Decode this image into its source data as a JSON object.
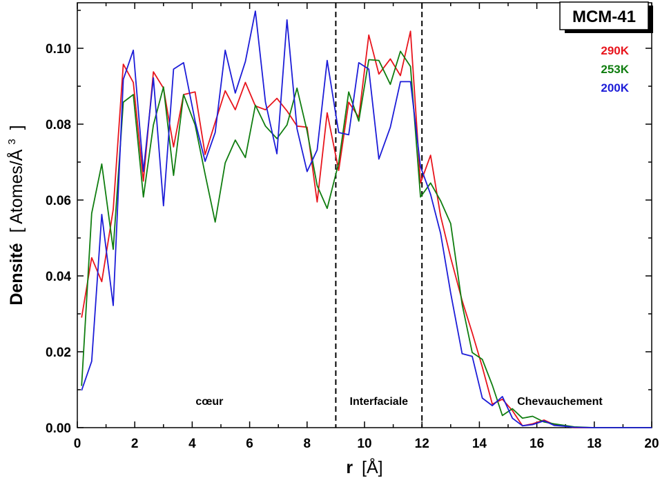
{
  "chart_data": {
    "type": "line",
    "title": "MCM-41",
    "xlabel": {
      "main": "r",
      "unit": "[Å]"
    },
    "ylabel": {
      "main": "Densité",
      "unit": "[ Atomes/Å",
      "sup": "3",
      "close": "]"
    },
    "xlim": [
      0,
      20
    ],
    "ylim": [
      0,
      0.112
    ],
    "xticks": [
      0,
      2,
      4,
      6,
      8,
      10,
      12,
      14,
      16,
      18,
      20
    ],
    "xtick_labels": [
      "0",
      "2",
      "4",
      "6",
      "8",
      "10",
      "12",
      "14",
      "16",
      "18",
      "20"
    ],
    "yticks": [
      0,
      0.02,
      0.04,
      0.06,
      0.08,
      0.1
    ],
    "ytick_labels": [
      "0.00",
      "0.02",
      "0.04",
      "0.06",
      "0.08",
      "0.10"
    ],
    "grid": false,
    "legend_position": "top-right",
    "vlines": [
      9,
      12
    ],
    "regions": [
      {
        "label": "cœur",
        "x": 4.6
      },
      {
        "label": "Interfaciale",
        "x": 10.5
      },
      {
        "label": "Chevauchement",
        "x": 16.8
      }
    ],
    "series": [
      {
        "name": "290K",
        "color": "#e8141c",
        "x": [
          0.15,
          0.5,
          0.85,
          1.25,
          1.6,
          1.95,
          2.3,
          2.65,
          3.0,
          3.35,
          3.7,
          4.1,
          4.45,
          4.8,
          5.15,
          5.5,
          5.85,
          6.2,
          6.55,
          6.95,
          7.3,
          7.65,
          8.0,
          8.35,
          8.7,
          9.1,
          9.45,
          9.8,
          10.15,
          10.5,
          10.9,
          11.25,
          11.6,
          11.95,
          12.3,
          12.65,
          13.0,
          13.4,
          13.75,
          14.1,
          14.45,
          14.8,
          15.15,
          15.5,
          15.85,
          16.25,
          16.6,
          16.95,
          17.3,
          18.0,
          19.0,
          20.0
        ],
        "y": [
          0.029,
          0.0448,
          0.0385,
          0.0575,
          0.0958,
          0.091,
          0.065,
          0.0938,
          0.0895,
          0.074,
          0.0878,
          0.0885,
          0.072,
          0.0805,
          0.0888,
          0.0838,
          0.091,
          0.0848,
          0.0838,
          0.0868,
          0.0835,
          0.0795,
          0.0792,
          0.0595,
          0.083,
          0.0678,
          0.0858,
          0.0818,
          0.1035,
          0.0932,
          0.0972,
          0.0928,
          0.1045,
          0.0645,
          0.0718,
          0.0558,
          0.0448,
          0.0335,
          0.025,
          0.016,
          0.0062,
          0.0075,
          0.0045,
          0.0005,
          0.001,
          0.002,
          0.0008,
          0.0005,
          0.0,
          0.0,
          0.0,
          0.0
        ]
      },
      {
        "name": "253K",
        "color": "#0f7d0f",
        "x": [
          0.15,
          0.5,
          0.85,
          1.25,
          1.6,
          1.95,
          2.3,
          2.65,
          3.0,
          3.35,
          3.7,
          4.1,
          4.45,
          4.8,
          5.15,
          5.5,
          5.85,
          6.2,
          6.55,
          6.95,
          7.3,
          7.65,
          8.0,
          8.35,
          8.7,
          9.1,
          9.45,
          9.8,
          10.15,
          10.5,
          10.9,
          11.25,
          11.6,
          11.95,
          12.3,
          12.65,
          13.0,
          13.4,
          13.75,
          14.1,
          14.45,
          14.8,
          15.15,
          15.5,
          15.85,
          16.25,
          16.6,
          16.95,
          17.3,
          18.0,
          19.0,
          20.0
        ],
        "y": [
          0.011,
          0.0565,
          0.0695,
          0.047,
          0.0858,
          0.0878,
          0.0608,
          0.0798,
          0.0898,
          0.0665,
          0.0878,
          0.0798,
          0.0668,
          0.0542,
          0.0698,
          0.0758,
          0.0712,
          0.085,
          0.0795,
          0.0762,
          0.0798,
          0.0895,
          0.0782,
          0.0638,
          0.0578,
          0.0698,
          0.0885,
          0.0808,
          0.097,
          0.0968,
          0.0905,
          0.0992,
          0.0952,
          0.0608,
          0.0645,
          0.0598,
          0.0538,
          0.0325,
          0.0198,
          0.018,
          0.0112,
          0.0032,
          0.005,
          0.0025,
          0.003,
          0.0015,
          0.001,
          0.0006,
          0.0002,
          0.0,
          0.0,
          0.0
        ]
      },
      {
        "name": "200K",
        "color": "#1c1cd8",
        "x": [
          0.15,
          0.5,
          0.85,
          1.25,
          1.6,
          1.95,
          2.3,
          2.65,
          3.0,
          3.35,
          3.7,
          4.1,
          4.45,
          4.8,
          5.15,
          5.5,
          5.85,
          6.2,
          6.55,
          6.95,
          7.3,
          7.65,
          8.0,
          8.35,
          8.7,
          9.1,
          9.45,
          9.8,
          10.15,
          10.5,
          10.9,
          11.25,
          11.6,
          11.95,
          12.3,
          12.65,
          13.0,
          13.4,
          13.75,
          14.1,
          14.45,
          14.8,
          15.15,
          15.5,
          15.85,
          16.25,
          16.6,
          16.95,
          17.3,
          18.0,
          19.0,
          20.0
        ],
        "y": [
          0.0098,
          0.0175,
          0.0562,
          0.0322,
          0.0918,
          0.0995,
          0.0675,
          0.0922,
          0.0585,
          0.0945,
          0.0962,
          0.0808,
          0.0702,
          0.0778,
          0.0995,
          0.0882,
          0.0965,
          0.1098,
          0.0858,
          0.0722,
          0.1075,
          0.0788,
          0.0675,
          0.0732,
          0.0968,
          0.0778,
          0.0772,
          0.0962,
          0.0945,
          0.0708,
          0.0792,
          0.0912,
          0.0912,
          0.0688,
          0.0615,
          0.0512,
          0.0355,
          0.0195,
          0.0188,
          0.0078,
          0.0058,
          0.0082,
          0.0025,
          0.0005,
          0.0008,
          0.0018,
          0.0006,
          0.0004,
          0.0001,
          0.0,
          0.0,
          0.0
        ]
      }
    ]
  }
}
